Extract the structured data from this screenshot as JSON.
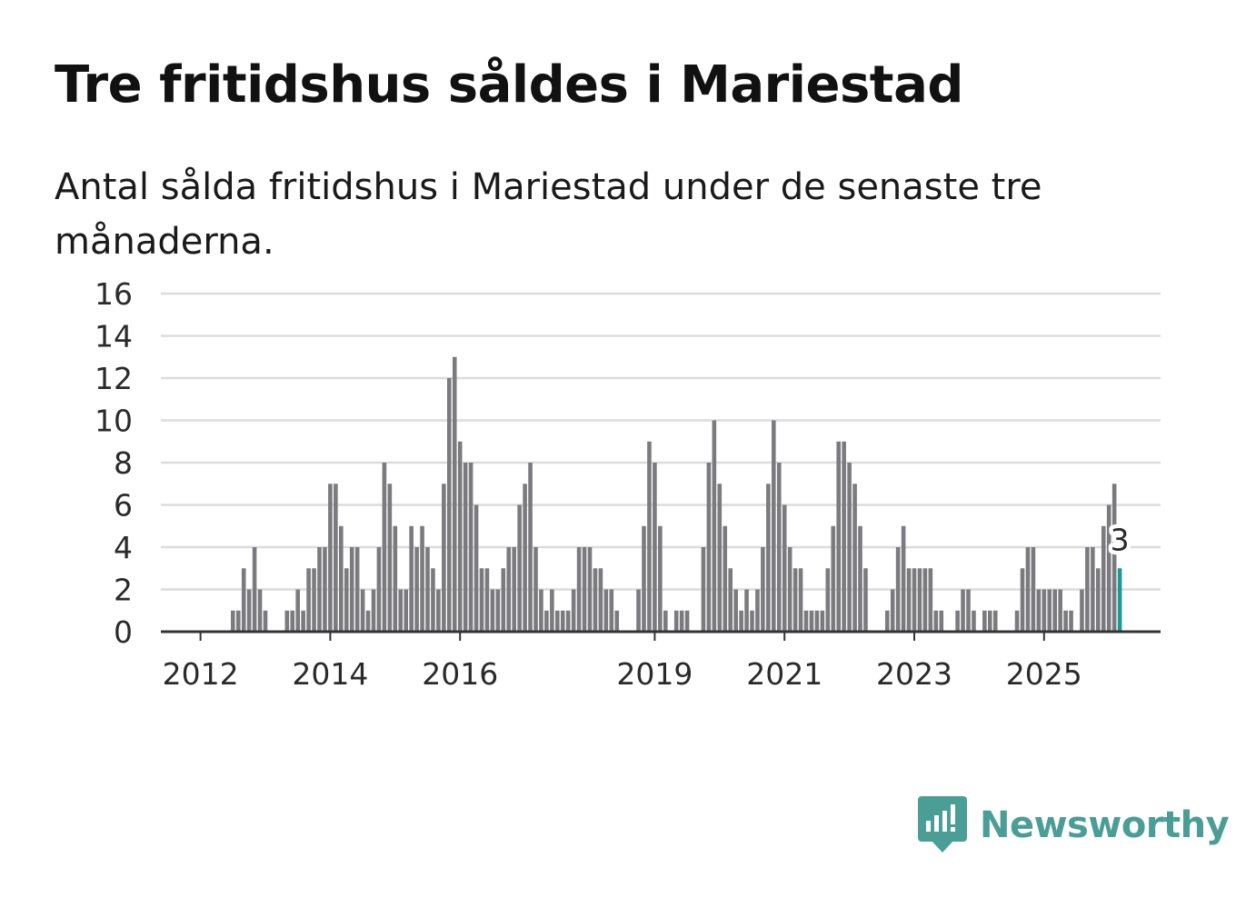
{
  "title": "Tre fritidshus såldes i Mariestad",
  "subtitle": "Antal sålda fritidshus i Mariestad under de senaste tre månaderna.",
  "brand": {
    "name": "Newsworthy",
    "logo_icon": "chat-bar-chart-icon"
  },
  "colors": {
    "bar": "#7b7a7f",
    "highlight": "#1a9a92",
    "grid": "#dcdcdc",
    "axis": "#333333",
    "brand": "#4a9e96"
  },
  "chart_data": {
    "type": "bar",
    "title": "Tre fritidshus såldes i Mariestad",
    "xlabel": "",
    "ylabel": "",
    "ylim": [
      0,
      16
    ],
    "yticks": [
      0,
      2,
      4,
      6,
      8,
      10,
      12,
      14,
      16
    ],
    "start": "2011-09",
    "interval": "month",
    "xticks": [
      {
        "label": "2012",
        "index": 4
      },
      {
        "label": "2014",
        "index": 28
      },
      {
        "label": "2016",
        "index": 52
      },
      {
        "label": "2019",
        "index": 88
      },
      {
        "label": "2021",
        "index": 112
      },
      {
        "label": "2023",
        "index": 136
      },
      {
        "label": "2025",
        "index": 160
      }
    ],
    "values": [
      0,
      0,
      0,
      0,
      0,
      0,
      0,
      0,
      0,
      0,
      1,
      1,
      3,
      2,
      4,
      2,
      1,
      0,
      0,
      0,
      1,
      1,
      2,
      1,
      3,
      3,
      4,
      4,
      7,
      7,
      5,
      3,
      4,
      4,
      2,
      1,
      2,
      4,
      8,
      7,
      5,
      2,
      2,
      5,
      4,
      5,
      4,
      3,
      2,
      7,
      12,
      13,
      9,
      8,
      8,
      6,
      3,
      3,
      2,
      2,
      3,
      4,
      4,
      6,
      7,
      8,
      4,
      2,
      1,
      2,
      1,
      1,
      1,
      2,
      4,
      4,
      4,
      3,
      3,
      2,
      2,
      1,
      0,
      0,
      0,
      2,
      5,
      9,
      8,
      5,
      1,
      0,
      1,
      1,
      1,
      0,
      0,
      4,
      8,
      10,
      7,
      5,
      3,
      2,
      1,
      2,
      1,
      2,
      4,
      7,
      10,
      8,
      6,
      4,
      3,
      3,
      1,
      1,
      1,
      1,
      3,
      5,
      9,
      9,
      8,
      7,
      5,
      3,
      0,
      0,
      0,
      1,
      2,
      4,
      5,
      3,
      3,
      3,
      3,
      3,
      1,
      1,
      0,
      0,
      1,
      2,
      2,
      1,
      0,
      1,
      1,
      1,
      0,
      0,
      0,
      1,
      3,
      4,
      4,
      2,
      2,
      2,
      2,
      2,
      1,
      1,
      0,
      2,
      4,
      4,
      3,
      5,
      6,
      7,
      3
    ],
    "highlight": {
      "index": 174,
      "value": 3,
      "label": "3"
    }
  }
}
